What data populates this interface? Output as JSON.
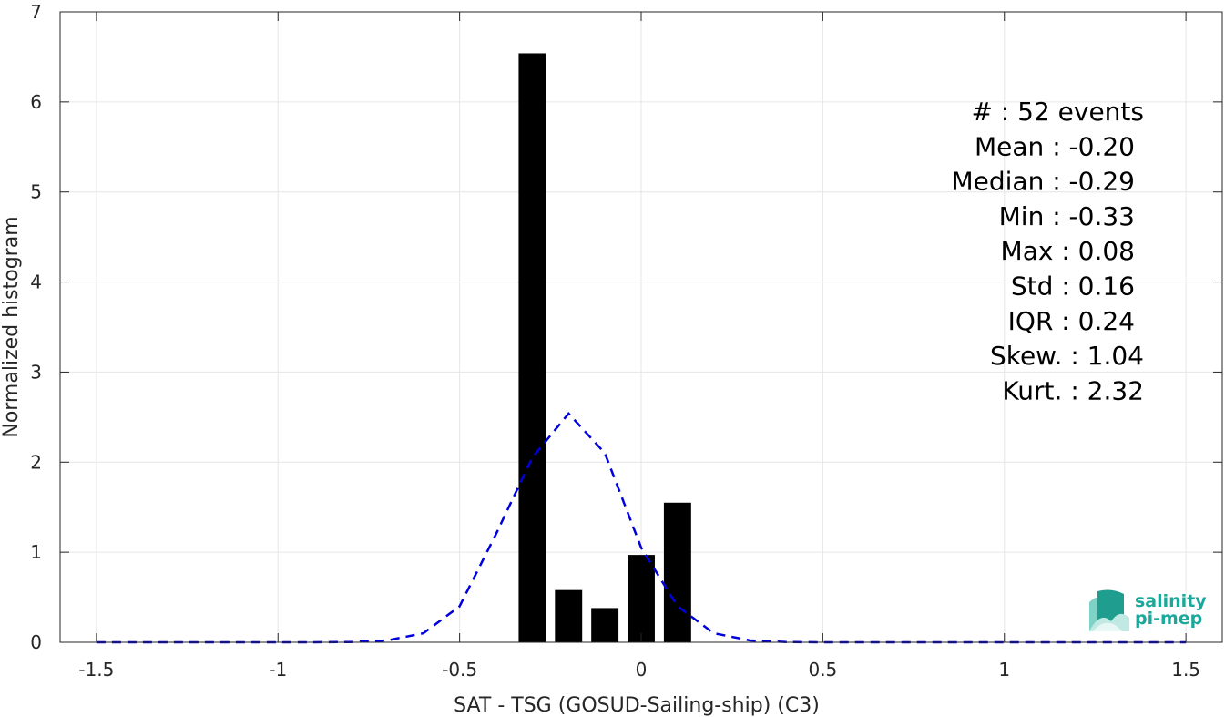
{
  "chart_data": {
    "type": "bar",
    "xlabel": "SAT - TSG (GOSUD-Sailing-ship) (C3)",
    "ylabel": "Normalized histogram",
    "xlim": [
      -1.6,
      1.6
    ],
    "ylim": [
      0,
      7
    ],
    "xticks": [
      -1.5,
      -1,
      -0.5,
      0,
      0.5,
      1,
      1.5
    ],
    "xtick_labels": [
      "-1.5",
      "-1",
      "-0.5",
      "0",
      "0.5",
      "1",
      "1.5"
    ],
    "yticks": [
      0,
      1,
      2,
      3,
      4,
      5,
      6,
      7
    ],
    "ytick_labels": [
      "0",
      "1",
      "2",
      "3",
      "4",
      "5",
      "6",
      "7"
    ],
    "grid": true,
    "bars": {
      "centers": [
        -0.3,
        -0.2,
        -0.1,
        0.0,
        0.1
      ],
      "width": 0.075,
      "values": [
        6.54,
        0.58,
        0.38,
        0.97,
        1.55
      ],
      "color": "#000000"
    },
    "fit_curve": {
      "style": "dashed",
      "color": "#0000dd",
      "x": [
        -1.5,
        -1.4,
        -1.3,
        -1.2,
        -1.1,
        -1.0,
        -0.9,
        -0.8,
        -0.7,
        -0.6,
        -0.5,
        -0.4,
        -0.3,
        -0.2,
        -0.1,
        0.0,
        0.1,
        0.2,
        0.3,
        0.4,
        0.5,
        0.6,
        0.7,
        0.8,
        0.9,
        1.0,
        1.1,
        1.2,
        1.3,
        1.4,
        1.5
      ],
      "y": [
        0,
        0,
        0,
        0,
        0,
        0,
        0,
        0.003,
        0.02,
        0.1,
        0.4,
        1.2,
        2.05,
        2.54,
        2.1,
        1.05,
        0.4,
        0.1,
        0.02,
        0.003,
        0,
        0,
        0,
        0,
        0,
        0,
        0,
        0,
        0,
        0,
        0
      ]
    },
    "stats": [
      "#  : 52 events",
      "Mean : -0.20",
      "Median : -0.29",
      "Min : -0.33",
      "Max : 0.08",
      "Std : 0.16",
      "IQR : 0.24",
      "Skew. : 1.04",
      "Kurt. : 2.32"
    ]
  },
  "logo": {
    "line1": "salinity",
    "line2": "pi-mep",
    "color": "#1aa89a"
  }
}
